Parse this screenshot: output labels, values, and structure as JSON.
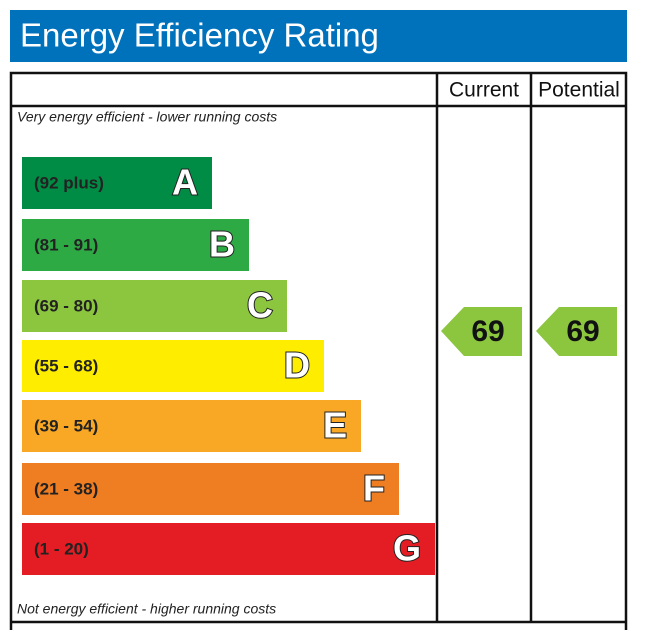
{
  "header": {
    "title": "Energy Efficiency Rating"
  },
  "table": {
    "columns": [
      "Current",
      "Potential"
    ],
    "top_note": "Very energy efficient - lower running costs",
    "bottom_note": "Not energy efficient - higher running costs",
    "bands": [
      {
        "range": "(92 plus)",
        "letter": "A"
      },
      {
        "range": "(81 - 91)",
        "letter": "B"
      },
      {
        "range": "(69 - 80)",
        "letter": "C"
      },
      {
        "range": "(55 - 68)",
        "letter": "D"
      },
      {
        "range": "(39 - 54)",
        "letter": "E"
      },
      {
        "range": "(21 - 38)",
        "letter": "F"
      },
      {
        "range": "(1 - 20)",
        "letter": "G"
      }
    ],
    "current": 69,
    "potential": 69
  }
}
